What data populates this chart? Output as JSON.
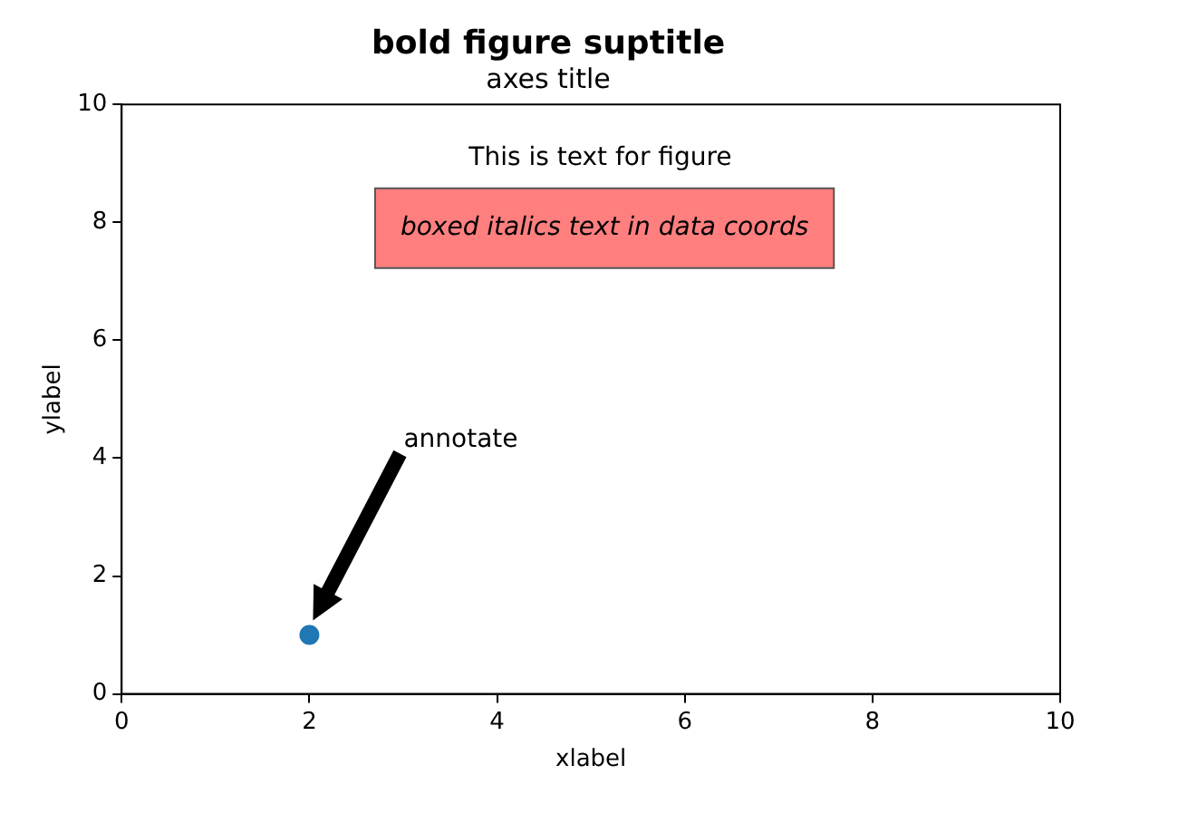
{
  "chart_data": {
    "type": "scatter",
    "title": "bold figure suptitle",
    "subtitle": "axes title",
    "xlabel": "xlabel",
    "ylabel": "ylabel",
    "x": [
      2
    ],
    "values": [
      1
    ],
    "color": "#1f77b4",
    "marker": "circle",
    "xlim": [
      0,
      10
    ],
    "ylim": [
      0,
      10
    ],
    "xticks": [
      0,
      2,
      4,
      6,
      8,
      10
    ],
    "yticks": [
      0,
      2,
      4,
      6,
      8,
      10
    ],
    "annotations": [
      "This is text for figure",
      "boxed italics text in data coords",
      "annotate"
    ]
  }
}
